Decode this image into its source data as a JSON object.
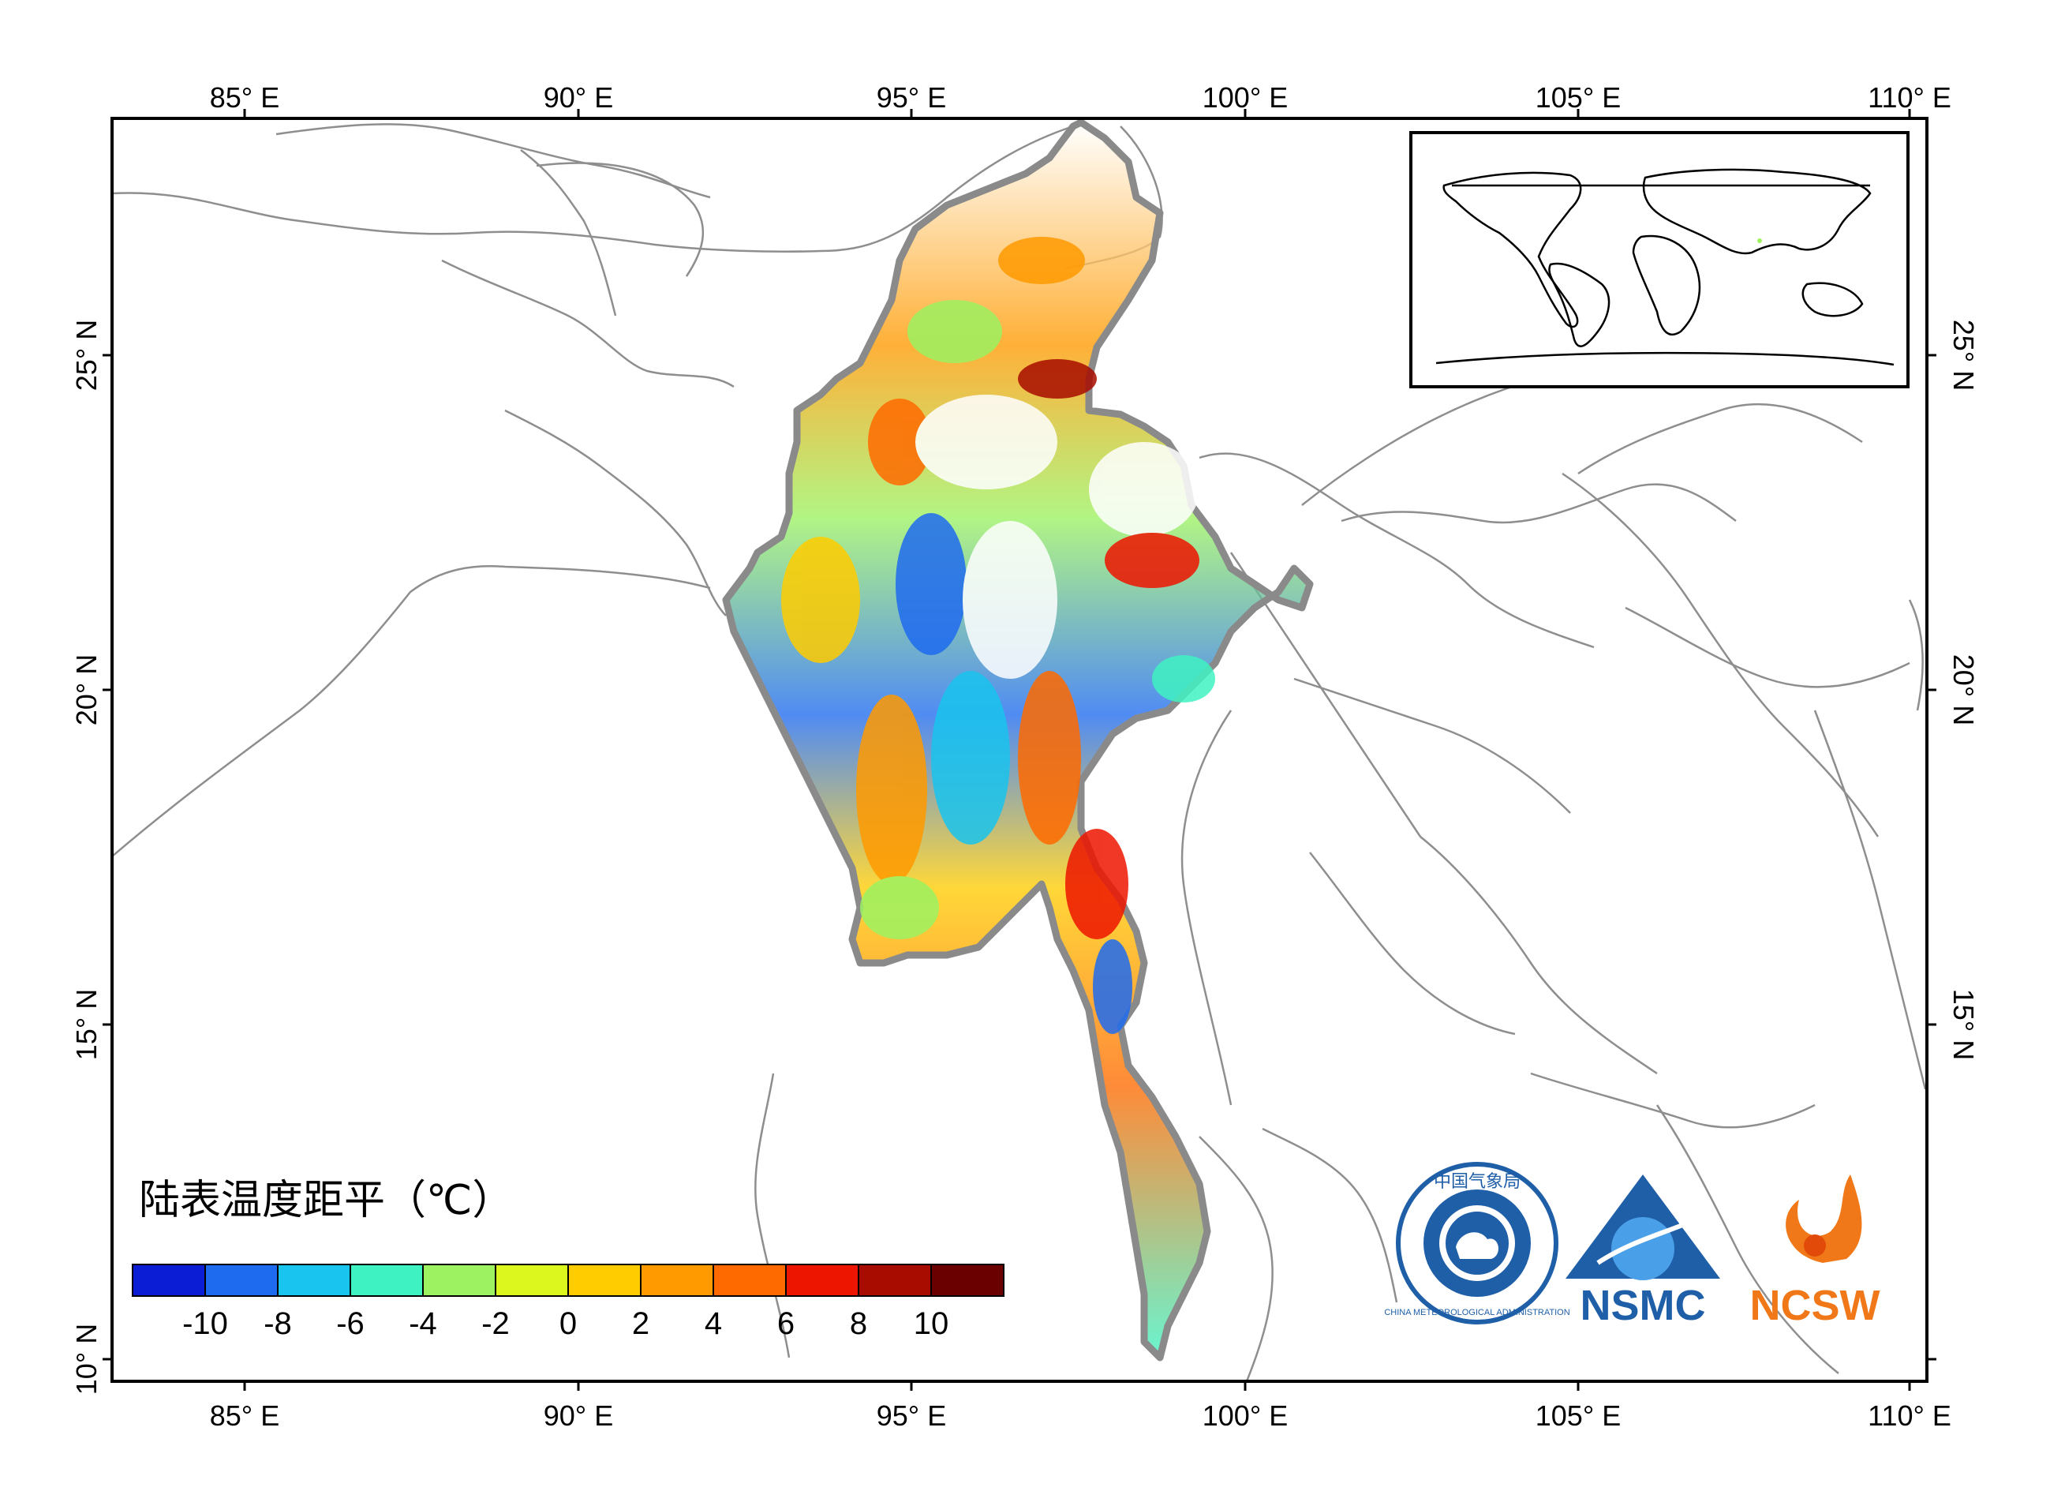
{
  "map": {
    "legend_title": "陆表温度距平（℃）",
    "lon_ticks": [
      "85° E",
      "90° E",
      "95° E",
      "100° E",
      "105° E",
      "110° E"
    ],
    "lat_ticks": [
      "25° N",
      "20° N",
      "15° N",
      "10° N"
    ],
    "lon_range": [
      83.0,
      110.3
    ],
    "lat_range": [
      9.6,
      28.5
    ],
    "colorbar": {
      "colors": [
        "#0b1ed6",
        "#1f6bf0",
        "#19c4ee",
        "#3ff2c2",
        "#9cf261",
        "#dcf71e",
        "#ffcc00",
        "#ff9a00",
        "#ff6a00",
        "#ee1500",
        "#a80c00",
        "#6a0000"
      ],
      "labels": [
        "-10",
        "-8",
        "-6",
        "-4",
        "-2",
        "0",
        "2",
        "4",
        "6",
        "8",
        "10"
      ]
    },
    "logos": {
      "cma_text": "CHINA METEOROLOGICAL ADMINISTRATION",
      "cma_chars": "中国气象局",
      "nsmc": "NSMC",
      "ncsw": "NCSW"
    },
    "colors": {
      "border": "#888888",
      "myanmar_outline": "#8a8a8a",
      "frame": "#000000"
    }
  }
}
